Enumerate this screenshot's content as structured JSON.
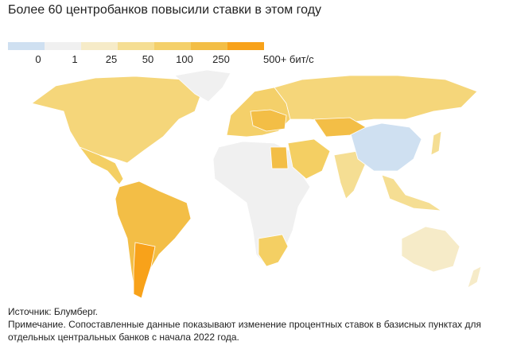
{
  "title": "Более 60 центробанков повысили ставки в этом году",
  "legend": {
    "colors": [
      "#cfe0f1",
      "#f0f0f0",
      "#f6ebc8",
      "#f5de93",
      "#f4d06a",
      "#f3be46",
      "#f8a21a"
    ],
    "labels": [
      "0",
      "1",
      "25",
      "50",
      "100",
      "250",
      "500+ бит/с"
    ]
  },
  "source": "Источник: Блумберг.",
  "note": "Примечание. Сопоставленные данные показывают изменение процентных ставок в базисных пунктах для отдельных центральных банков с начала 2022 года."
}
